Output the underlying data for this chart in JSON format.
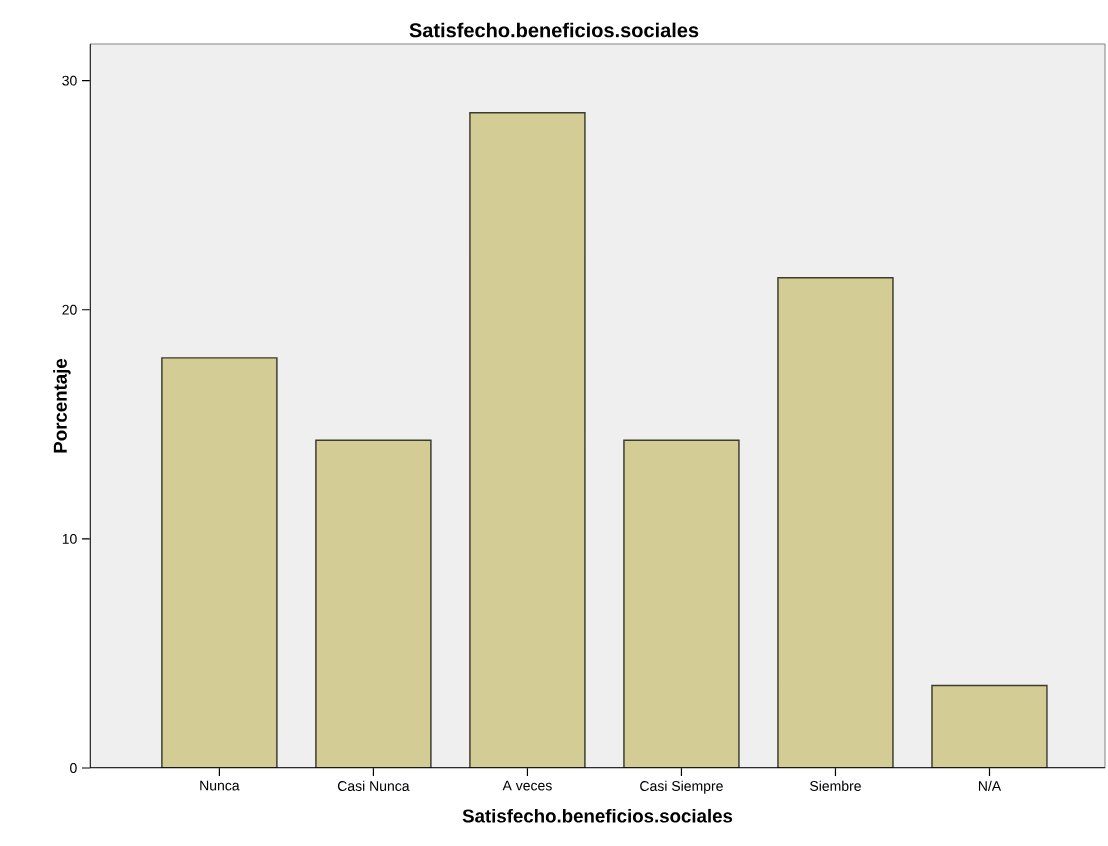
{
  "chart_data": {
    "type": "bar",
    "title": "Satisfecho.beneficios.sociales",
    "xlabel": "Satisfecho.beneficios.sociales",
    "ylabel": "Porcentaje",
    "categories": [
      "Nunca",
      "Casi Nunca",
      "A veces",
      "Casi Siempre",
      "Siembre",
      "N/A"
    ],
    "values": [
      17.9,
      14.3,
      28.6,
      14.3,
      21.4,
      3.6
    ],
    "color": "#d3cd95",
    "ylim": [
      0,
      31.6
    ],
    "yticks": [
      0,
      10,
      20,
      30
    ]
  }
}
